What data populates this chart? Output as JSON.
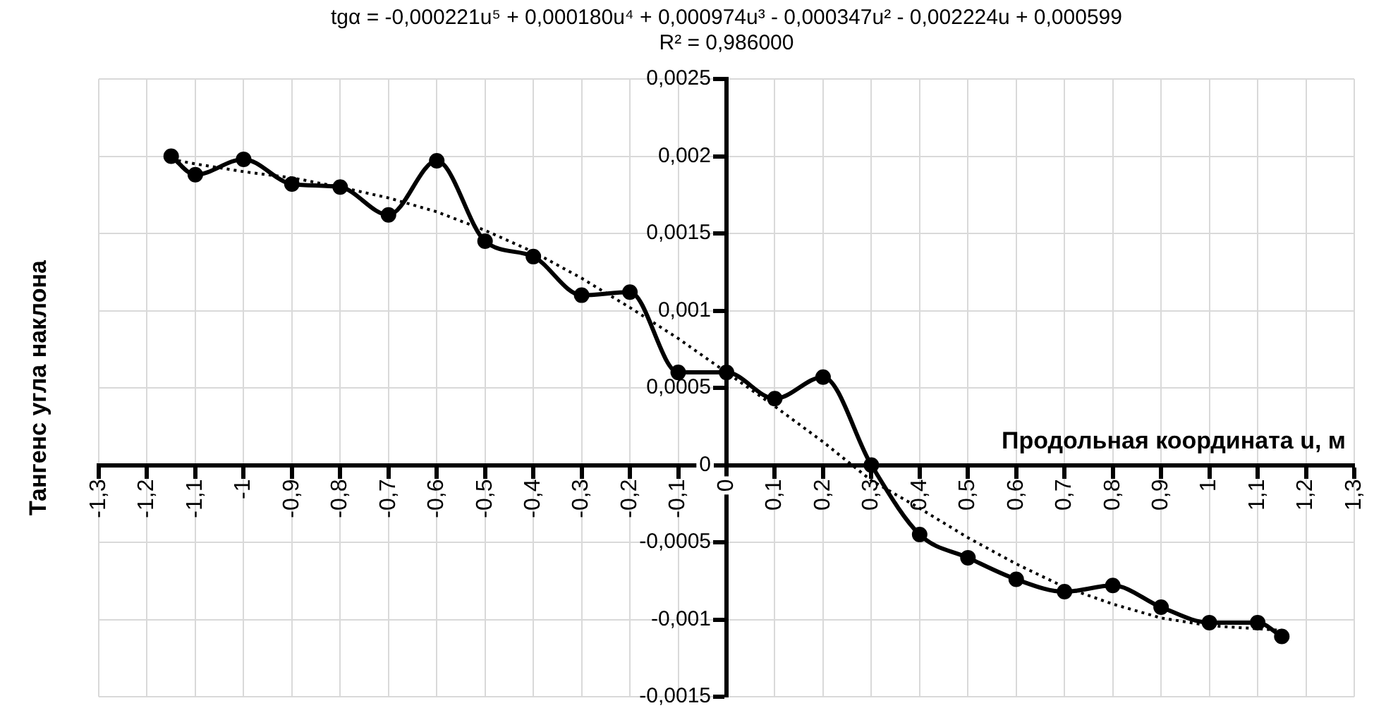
{
  "chart_data": {
    "type": "line",
    "title": "tgα = -0,000221u⁵ + 0,000180u⁴ + 0,000974u³ - 0,000347u² - 0,002224u + 0,000599",
    "subtitle": "R² = 0,986000",
    "xlabel": "Продольная координата u, м",
    "ylabel": "Тангенс угла наклона",
    "series": [
      {
        "color": "#000000",
        "marker": "circle",
        "line_style": "solid",
        "x": [
          -1.15,
          -1.1,
          -1.0,
          -0.9,
          -0.8,
          -0.7,
          -0.6,
          -0.5,
          -0.4,
          -0.3,
          -0.2,
          -0.1,
          0,
          0.1,
          0.2,
          0.3,
          0.4,
          0.5,
          0.6,
          0.7,
          0.8,
          0.9,
          1.0,
          1.1,
          1.15
        ],
        "values": [
          0.002,
          0.00188,
          0.00198,
          0.00182,
          0.0018,
          0.00162,
          0.00197,
          0.00145,
          0.00135,
          0.0011,
          0.00112,
          0.0006,
          0.0006,
          0.00043,
          0.00057,
          0.0,
          -0.00045,
          -0.0006,
          -0.00074,
          -0.00082,
          -0.00078,
          -0.00092,
          -0.00102,
          -0.00102,
          -0.00111
        ]
      },
      {
        "color": "#000000",
        "marker": "none",
        "line_style": "dotted",
        "x": [
          -1.15,
          -1.1,
          -1.0,
          -0.9,
          -0.8,
          -0.7,
          -0.6,
          -0.5,
          -0.4,
          -0.3,
          -0.2,
          -0.1,
          0,
          0.1,
          0.2,
          0.3,
          0.4,
          0.5,
          0.6,
          0.7,
          0.8,
          0.9,
          1.0,
          1.1,
          1.15
        ],
        "values": [
          0.00198,
          0.00195,
          0.0019,
          0.00186,
          0.0018,
          0.00173,
          0.00164,
          0.00152,
          0.00138,
          0.00121,
          0.00102,
          0.00082,
          0.0006,
          0.00038,
          0.00015,
          -0.0001,
          -0.00028,
          -0.00047,
          -0.00064,
          -0.00079,
          -0.0009,
          -0.00099,
          -0.00104,
          -0.00106,
          -0.00107
        ]
      }
    ],
    "xlim": [
      -1.3,
      1.3
    ],
    "xticks": [
      {
        "value": -1.3,
        "label": "-1,3"
      },
      {
        "value": -1.2,
        "label": "-1,2"
      },
      {
        "value": -1.1,
        "label": "-1,1"
      },
      -1,
      {
        "value": -0.9,
        "label": "-0,9"
      },
      {
        "value": -0.8,
        "label": "-0,8"
      },
      {
        "value": -0.7,
        "label": "-0,7"
      },
      {
        "value": -0.6,
        "label": "-0,6"
      },
      {
        "value": -0.5,
        "label": "-0,5"
      },
      {
        "value": -0.4,
        "label": "-0,4"
      },
      {
        "value": -0.3,
        "label": "-0,3"
      },
      {
        "value": -0.2,
        "label": "-0,2"
      },
      {
        "value": -0.1,
        "label": "-0,1"
      },
      0,
      {
        "value": 0.1,
        "label": "0,1"
      },
      {
        "value": 0.2,
        "label": "0,2"
      },
      {
        "value": 0.3,
        "label": "0,3"
      },
      {
        "value": 0.4,
        "label": "0,4"
      },
      {
        "value": 0.5,
        "label": "0,5"
      },
      {
        "value": 0.6,
        "label": "0,6"
      },
      {
        "value": 0.7,
        "label": "0,7"
      },
      {
        "value": 0.8,
        "label": "0,8"
      },
      {
        "value": 0.9,
        "label": "0,9"
      },
      1,
      {
        "value": 1.1,
        "label": "1,1"
      },
      {
        "value": 1.2,
        "label": "1,2"
      },
      {
        "value": 1.3,
        "label": "1,3"
      }
    ],
    "ylim": [
      -0.0015,
      0.0025
    ],
    "yticks": [
      {
        "value": -0.0015,
        "label": "-0,0015"
      },
      {
        "value": -0.001,
        "label": "-0,001"
      },
      {
        "value": -0.0005,
        "label": "-0,0005"
      },
      0,
      {
        "value": 0.0005,
        "label": "0,0005"
      },
      {
        "value": 0.001,
        "label": "0,001"
      },
      {
        "value": 0.0015,
        "label": "0,0015"
      },
      {
        "value": 0.002,
        "label": "0,002"
      },
      {
        "value": 0.0025,
        "label": "0,0025"
      }
    ],
    "grid": true,
    "legend": false
  }
}
